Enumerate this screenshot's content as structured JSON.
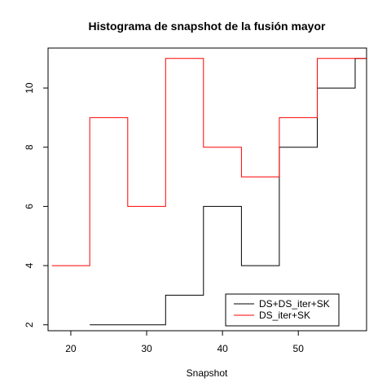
{
  "chart_data": {
    "type": "line",
    "step": true,
    "title": "Histograma de snapshot de la fusión mayor",
    "xlabel": "Snapshot",
    "ylabel": "",
    "xlim": [
      17,
      59
    ],
    "ylim": [
      1.8,
      11.35
    ],
    "xticks": [
      20,
      30,
      40,
      50
    ],
    "yticks": [
      2,
      4,
      6,
      8,
      10
    ],
    "grid": false,
    "legend_position": "bottom-right",
    "series": [
      {
        "name": "DS+DS_iter+SK",
        "color": "#000000",
        "x": [
          22.5,
          27.5,
          32.5,
          37.5,
          42.5,
          47.5,
          52.5,
          57.5
        ],
        "y": [
          2,
          2,
          3,
          6,
          4,
          8,
          10,
          11
        ]
      },
      {
        "name": "DS_iter+SK",
        "color": "#ff0000",
        "x": [
          17.5,
          22.5,
          27.5,
          32.5,
          37.5,
          42.5,
          47.5,
          52.5,
          57.5
        ],
        "y": [
          4,
          9,
          6,
          11,
          8,
          7,
          9,
          11,
          11
        ]
      }
    ]
  }
}
